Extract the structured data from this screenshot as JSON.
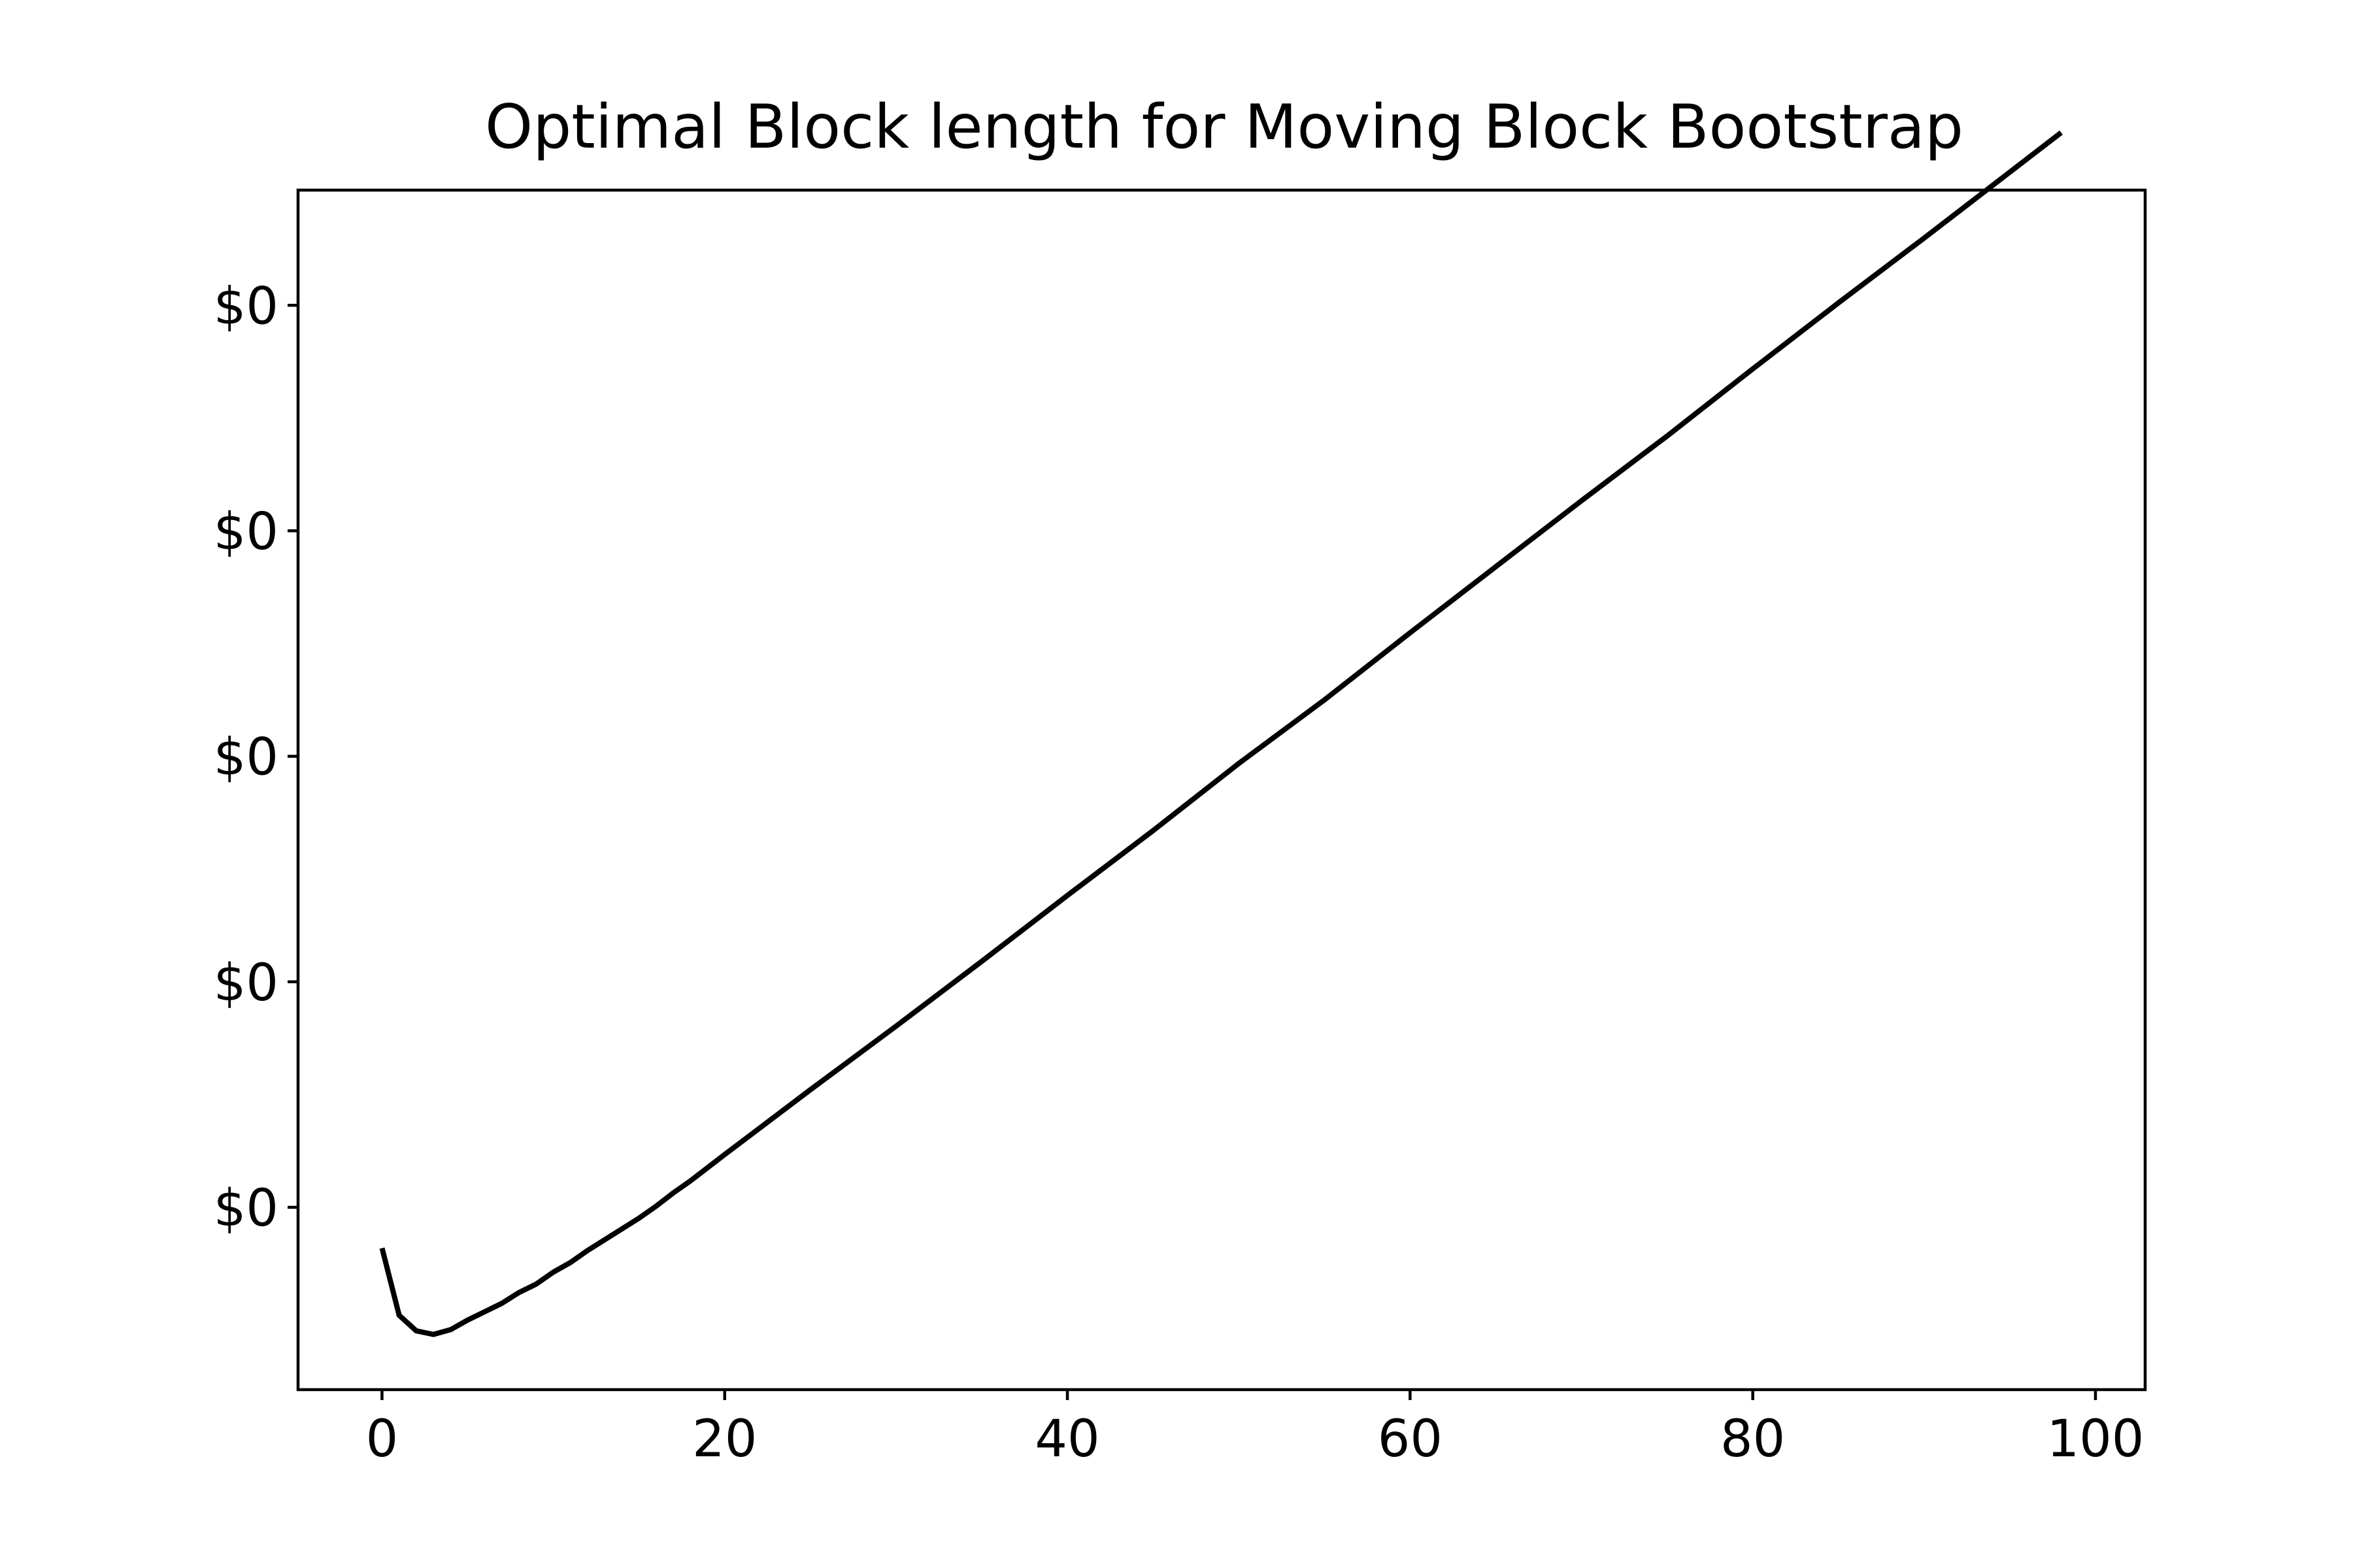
{
  "chart_data": {
    "type": "line",
    "title": "Optimal Block length for Moving Block Bootstrap",
    "xlabel": "",
    "ylabel": "",
    "xlim": [
      -4.9,
      102.9
    ],
    "ylim": [
      0.0,
      1.0
    ],
    "x_ticks": [
      0,
      20,
      40,
      60,
      80,
      100
    ],
    "y_ticks": [
      0.152,
      0.34,
      0.528,
      0.716,
      0.904
    ],
    "y_tick_labels": [
      "$0",
      "$0",
      "$0",
      "$0",
      "$0"
    ],
    "grid": false,
    "legend": "none",
    "series": [
      {
        "color": "#000000",
        "x": [
          0,
          1,
          2,
          3,
          4,
          5,
          6,
          7,
          8,
          9,
          10,
          11,
          12,
          13,
          14,
          15,
          16,
          17,
          18,
          19,
          20,
          25,
          30,
          35,
          40,
          45,
          50,
          55,
          60,
          65,
          70,
          75,
          80,
          85,
          90,
          95,
          98
        ],
        "y": [
          0.118,
          0.062,
          0.049,
          0.046,
          0.05,
          0.058,
          0.065,
          0.072,
          0.081,
          0.088,
          0.098,
          0.106,
          0.116,
          0.125,
          0.134,
          0.143,
          0.153,
          0.164,
          0.174,
          0.185,
          0.196,
          0.25,
          0.303,
          0.357,
          0.412,
          0.466,
          0.522,
          0.575,
          0.631,
          0.686,
          0.741,
          0.795,
          0.851,
          0.906,
          0.96,
          1.015,
          1.048
        ]
      }
    ]
  }
}
